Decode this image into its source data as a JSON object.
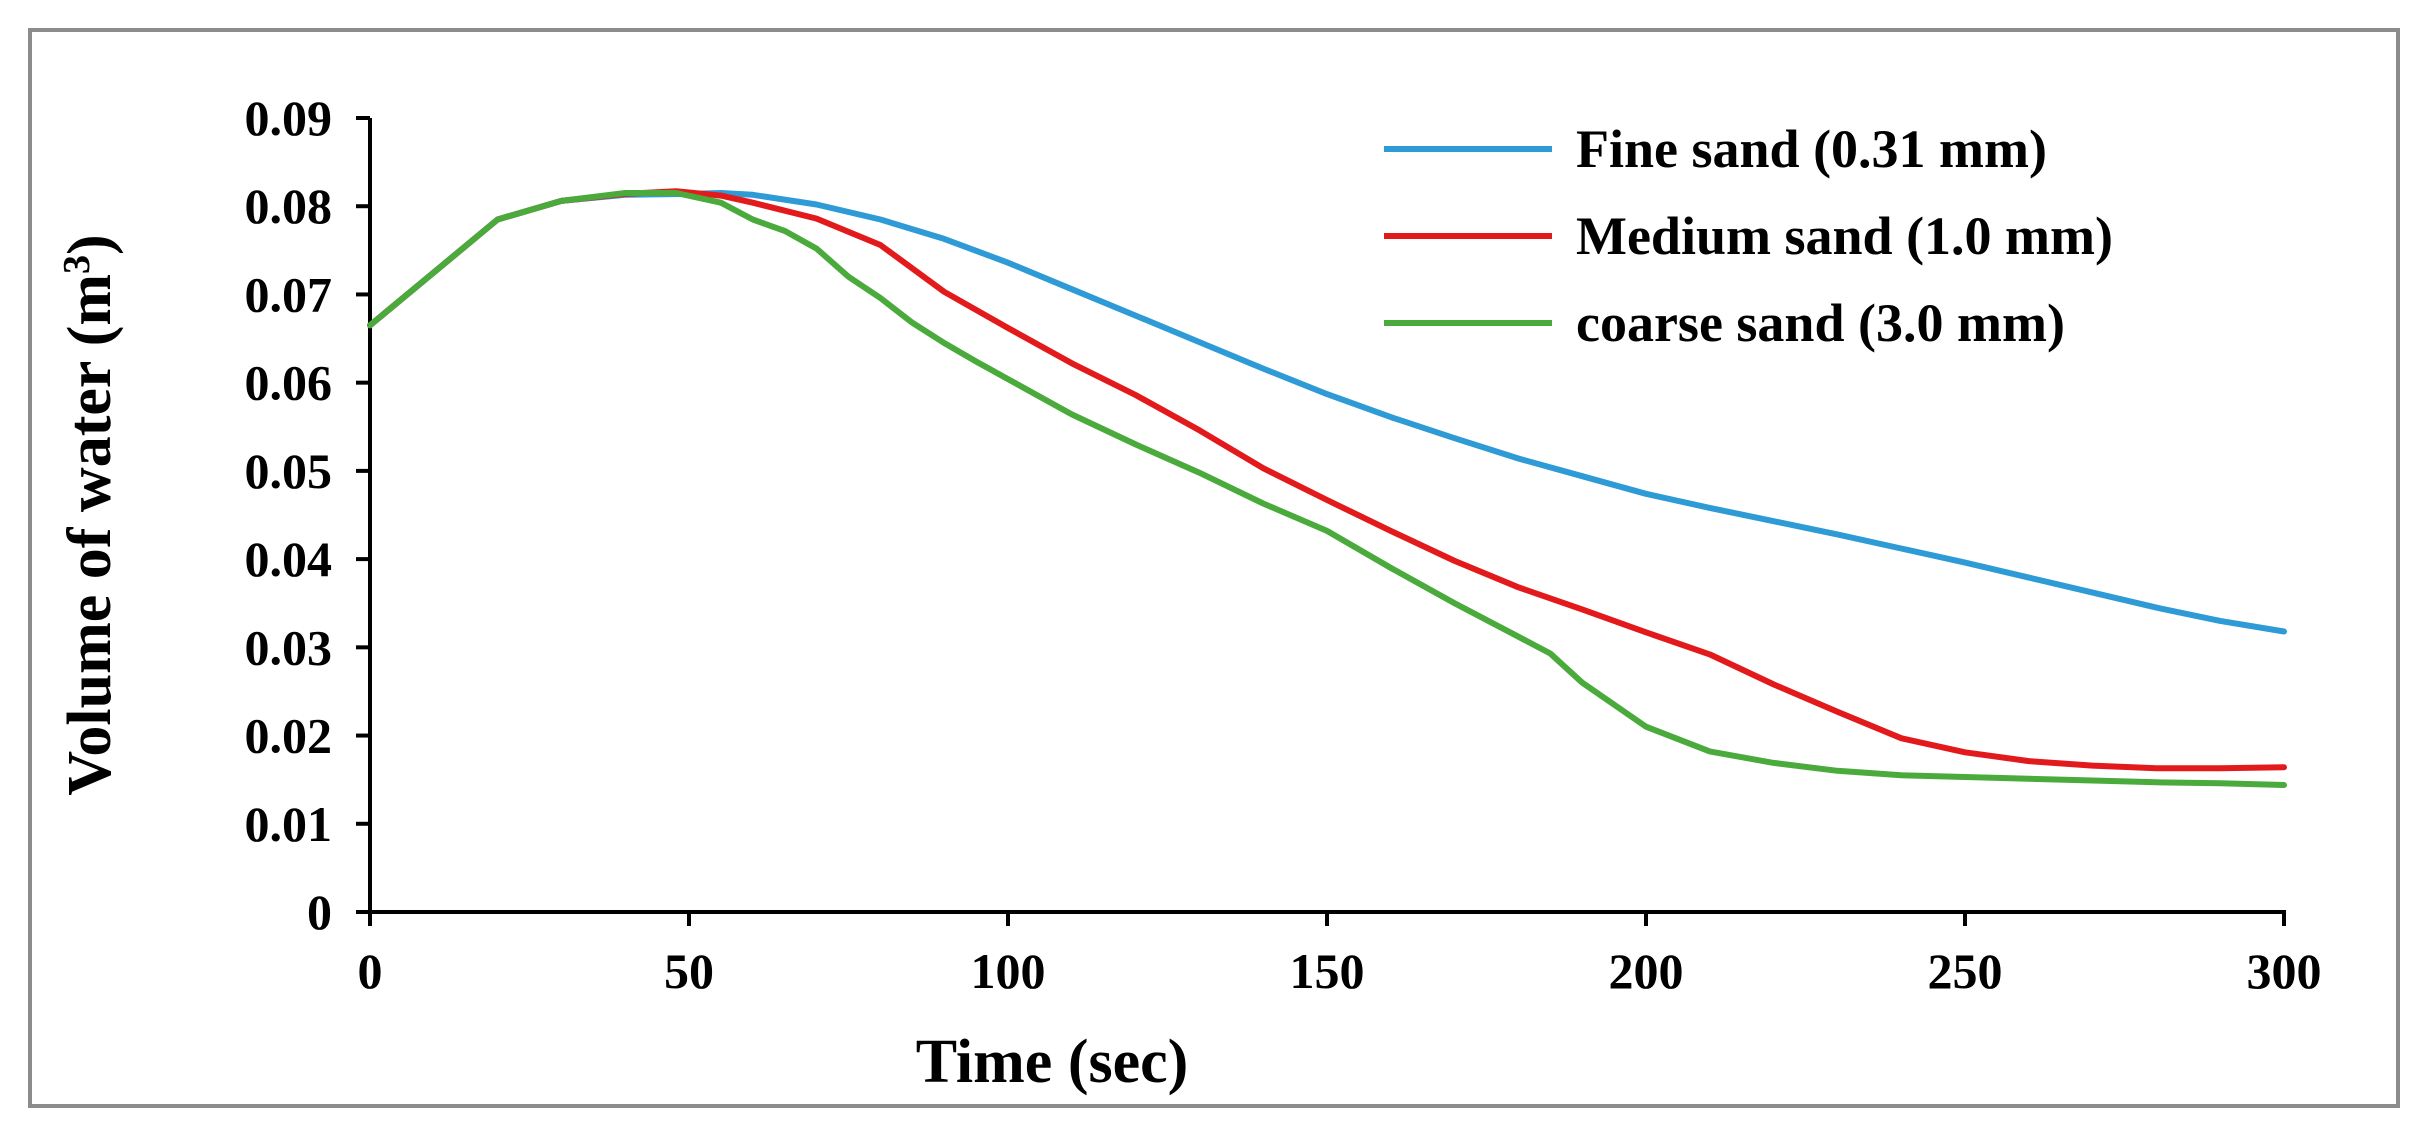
{
  "chart_data": {
    "type": "line",
    "title": "",
    "xlabel": "Time (sec)",
    "ylabel": "Volume of water (m³)",
    "xlim": [
      0,
      300
    ],
    "ylim": [
      0,
      0.09
    ],
    "xticks": [
      0,
      50,
      100,
      150,
      200,
      250,
      300
    ],
    "xtick_labels": [
      "0",
      "50",
      "100",
      "150",
      "200",
      "250",
      "300"
    ],
    "yticks": [
      0,
      0.01,
      0.02,
      0.03,
      0.04,
      0.05,
      0.06,
      0.07,
      0.08,
      0.09
    ],
    "ytick_labels": [
      "0",
      "0.01",
      "0.02",
      "0.03",
      "0.04",
      "0.05",
      "0.06",
      "0.07",
      "0.08",
      "0.09"
    ],
    "grid": false,
    "legend_position": "top-right",
    "series": [
      {
        "name": "Fine sand (0.31 mm)",
        "color": "#2e9bd6",
        "x": [
          0,
          10,
          20,
          30,
          40,
          50,
          55,
          60,
          70,
          80,
          90,
          100,
          110,
          120,
          130,
          140,
          150,
          160,
          170,
          180,
          190,
          200,
          210,
          220,
          230,
          240,
          250,
          260,
          270,
          280,
          290,
          300
        ],
        "y": [
          0.0665,
          0.0725,
          0.0785,
          0.0806,
          0.0813,
          0.0814,
          0.0815,
          0.0813,
          0.0802,
          0.0785,
          0.0763,
          0.0736,
          0.0706,
          0.0676,
          0.0646,
          0.0616,
          0.0587,
          0.0561,
          0.0537,
          0.0514,
          0.0494,
          0.0474,
          0.0458,
          0.0443,
          0.0428,
          0.0412,
          0.0396,
          0.0379,
          0.0362,
          0.0345,
          0.033,
          0.0318
        ]
      },
      {
        "name": "Medium sand (1.0 mm)",
        "color": "#e31a1c",
        "x": [
          0,
          10,
          20,
          30,
          40,
          48,
          55,
          60,
          70,
          80,
          90,
          100,
          110,
          120,
          130,
          140,
          150,
          160,
          170,
          180,
          190,
          200,
          210,
          220,
          230,
          240,
          250,
          260,
          270,
          280,
          290,
          300
        ],
        "y": [
          0.0665,
          0.0725,
          0.0785,
          0.0806,
          0.0814,
          0.0817,
          0.0812,
          0.0804,
          0.0786,
          0.0756,
          0.0703,
          0.0662,
          0.0622,
          0.0586,
          0.0546,
          0.0503,
          0.0467,
          0.0432,
          0.0398,
          0.0368,
          0.0343,
          0.0317,
          0.0292,
          0.0258,
          0.0227,
          0.0197,
          0.0181,
          0.0171,
          0.0166,
          0.0163,
          0.0163,
          0.0164
        ]
      },
      {
        "name": "coarse sand (3.0 mm)",
        "color": "#4aab3c",
        "x": [
          0,
          10,
          20,
          30,
          40,
          48,
          55,
          60,
          65,
          70,
          75,
          80,
          85,
          90,
          95,
          100,
          110,
          120,
          130,
          140,
          150,
          160,
          170,
          180,
          185,
          190,
          200,
          210,
          220,
          230,
          240,
          250,
          260,
          270,
          280,
          290,
          300
        ],
        "y": [
          0.0665,
          0.0725,
          0.0785,
          0.0806,
          0.0815,
          0.0815,
          0.0804,
          0.0785,
          0.0772,
          0.0752,
          0.072,
          0.0696,
          0.0668,
          0.0645,
          0.0624,
          0.0604,
          0.0564,
          0.053,
          0.0498,
          0.0463,
          0.0432,
          0.039,
          0.035,
          0.0312,
          0.0293,
          0.026,
          0.021,
          0.0182,
          0.0169,
          0.016,
          0.0155,
          0.0153,
          0.0151,
          0.0149,
          0.0147,
          0.0146,
          0.0144
        ]
      }
    ]
  }
}
